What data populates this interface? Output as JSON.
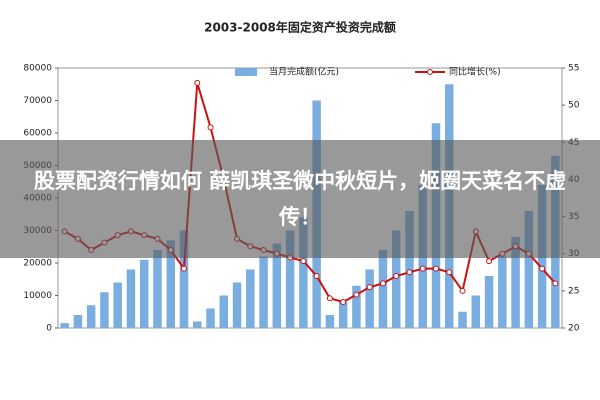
{
  "chart_data": {
    "type": "bar_line",
    "title": "2003-2008年固定资产投资完成额",
    "categories": [
      null,
      null,
      null,
      null,
      null,
      null,
      null,
      null,
      null,
      null,
      null,
      null,
      null,
      null,
      null,
      null,
      null,
      null,
      null,
      null,
      null,
      null,
      null,
      null,
      null,
      null,
      null,
      null,
      null,
      null,
      null,
      null,
      null,
      null,
      null,
      null,
      null,
      null
    ],
    "series": [
      {
        "name": "当月完成额(亿元)",
        "color": "#7aaee0",
        "values": [
          1500,
          4000,
          7000,
          11000,
          14000,
          18000,
          21000,
          24000,
          27000,
          30000,
          2000,
          6000,
          10000,
          14000,
          18000,
          22000,
          26000,
          30000,
          34000,
          70000,
          4000,
          8000,
          13000,
          18000,
          24000,
          30000,
          36000,
          44000,
          63000,
          75000,
          5000,
          10000,
          16000,
          22000,
          28000,
          36000,
          44000,
          53000
        ]
      },
      {
        "name": "同比增长(%)",
        "color": "#cc1111",
        "axis": "y2",
        "values": [
          33,
          32,
          30.5,
          31.5,
          32.5,
          33,
          32.5,
          32,
          30.5,
          28,
          53,
          47,
          40,
          32,
          31,
          30.5,
          30,
          29.5,
          29,
          27,
          24,
          23.5,
          24.5,
          25.5,
          26,
          27,
          27.5,
          28,
          28,
          27.5,
          25,
          33,
          29,
          30,
          31,
          30,
          28,
          26
        ]
      }
    ],
    "ylim": [
      0,
      80000
    ],
    "yticks": [
      0,
      10000,
      20000,
      30000,
      40000,
      50000,
      60000,
      70000,
      80000
    ],
    "y2lim": [
      20,
      55
    ],
    "y2ticks": [
      20,
      25,
      30,
      35,
      40,
      45,
      50,
      55
    ]
  },
  "overlay": {
    "text": "股票配资行情如何 薛凯琪圣微中秋短片，姬圈天菜名不虚传！"
  }
}
